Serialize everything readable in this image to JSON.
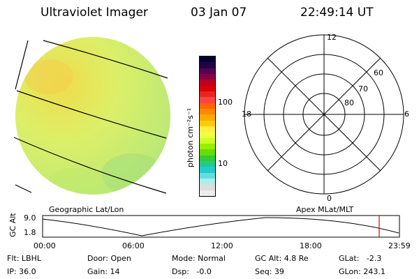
{
  "header": {
    "title": "Ultraviolet Imager",
    "date": "03 Jan 07",
    "time": "22:49:14 UT"
  },
  "colorbar": {
    "unit_label": "photon cm⁻²s⁻¹",
    "ticks": [
      "100",
      "10"
    ],
    "colors": [
      "#000033",
      "#220044",
      "#550055",
      "#880044",
      "#bb0022",
      "#dd0000",
      "#ee2222",
      "#ff4444",
      "#ff6600",
      "#ff8800",
      "#ffaa00",
      "#ffcc00",
      "#ffee44",
      "#eeff44",
      "#ccff22",
      "#99ee00",
      "#66dd00",
      "#33cc33",
      "#22cc88",
      "#22cccc",
      "#66dddd",
      "#aaeeee",
      "#dddddd",
      "#eeeeee"
    ]
  },
  "polar": {
    "hour_labels": [
      "12",
      "6",
      "0",
      "18"
    ],
    "lat_labels": [
      "60",
      "70",
      "80"
    ]
  },
  "projection": {
    "left_label": "Geographic Lat/Lon",
    "right_label": "Apex MLat/MLT"
  },
  "timeline": {
    "axis_label": "GC Alt",
    "y_ticks": [
      "9.0",
      "1.8"
    ],
    "x_ticks": [
      "00:00",
      "06:00",
      "12:00",
      "18:00",
      "23:59"
    ]
  },
  "info": {
    "flt": "Flt: LBHL",
    "ip": "IP: 36.0",
    "door": "Door: Open",
    "gain": "Gain: 14",
    "mode": "Mode: Normal",
    "dsp": "Dsp:   -0.0",
    "gcalt": "GC Alt: 4.8 Re",
    "seq": "Seq: 39",
    "glat": "GLat:   -2.3",
    "glon": "GLon: 243.1"
  },
  "colors": {
    "disk_main": "#d6f26a",
    "disk_orange": "#f4d24a",
    "disk_green": "#a8e06a",
    "marker": "#dd0000"
  }
}
